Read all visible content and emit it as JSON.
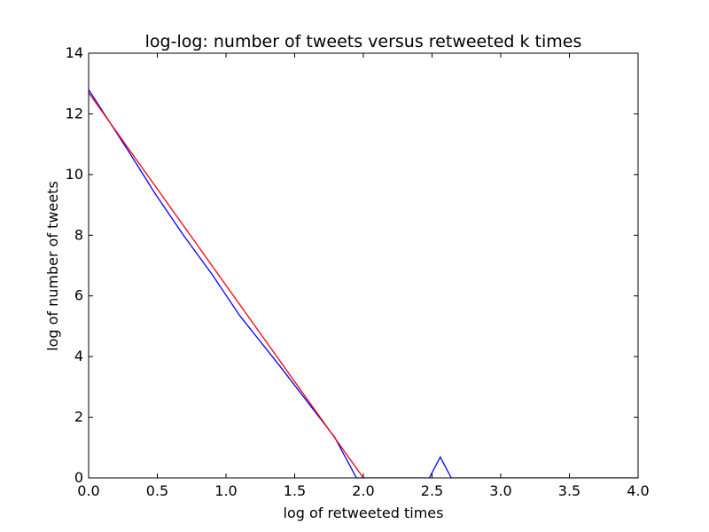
{
  "chart_data": {
    "type": "line",
    "title": "log-log: number of tweets versus retweeted k times",
    "xlabel": "log of retweeted times",
    "ylabel": "log of number of tweets",
    "xlim": [
      0,
      4
    ],
    "ylim": [
      0,
      14
    ],
    "grid": false,
    "x_ticks": [
      0,
      0.5,
      1,
      1.5,
      2,
      2.5,
      3,
      3.5,
      4
    ],
    "x_tick_labels": [
      "0.0",
      "0.5",
      "1.0",
      "1.5",
      "2.0",
      "2.5",
      "3.0",
      "3.5",
      "4.0"
    ],
    "y_ticks": [
      0,
      2,
      4,
      6,
      8,
      10,
      12,
      14
    ],
    "y_tick_labels": [
      "0",
      "2",
      "4",
      "6",
      "8",
      "10",
      "12",
      "14"
    ],
    "series": [
      {
        "color": "#0000ff",
        "points": [
          [
            0.0,
            12.8
          ],
          [
            0.3,
            10.7
          ],
          [
            0.48,
            9.4
          ],
          [
            0.69,
            8.0
          ],
          [
            0.9,
            6.7
          ],
          [
            1.1,
            5.35
          ],
          [
            1.39,
            3.7
          ],
          [
            1.79,
            1.35
          ],
          [
            1.95,
            0.0
          ],
          [
            2.48,
            0.0
          ],
          [
            2.56,
            0.69
          ],
          [
            2.64,
            0.0
          ],
          [
            4.0,
            0.0
          ]
        ]
      },
      {
        "color": "#ff0000",
        "points": [
          [
            0.0,
            12.7
          ],
          [
            2.0,
            0.0
          ]
        ]
      }
    ]
  }
}
